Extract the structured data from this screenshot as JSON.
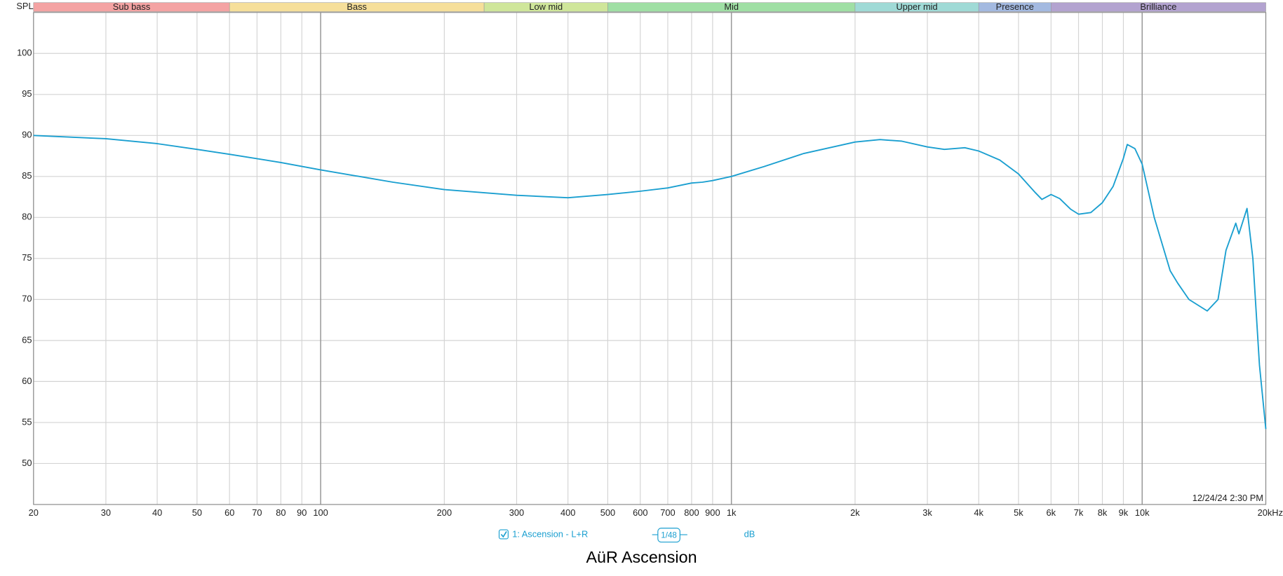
{
  "chart_data": {
    "type": "line",
    "title": "AüR Ascension",
    "y_label": "SPL",
    "timestamp": "12/24/24 2:30 PM",
    "xscale": "log",
    "grid": true,
    "xlim": [
      20,
      20000
    ],
    "ylim": [
      45,
      105
    ],
    "xticks": [
      20,
      30,
      40,
      50,
      60,
      70,
      80,
      90,
      100,
      200,
      300,
      400,
      500,
      600,
      700,
      800,
      900,
      {
        "value": 1000,
        "label": "1k"
      },
      {
        "value": 2000,
        "label": "2k"
      },
      {
        "value": 3000,
        "label": "3k"
      },
      {
        "value": 4000,
        "label": "4k"
      },
      {
        "value": 5000,
        "label": "5k"
      },
      {
        "value": 6000,
        "label": "6k"
      },
      {
        "value": 7000,
        "label": "7k"
      },
      {
        "value": 8000,
        "label": "8k"
      },
      {
        "value": 9000,
        "label": "9k"
      },
      {
        "value": 10000,
        "label": "10k"
      },
      {
        "value": 20000,
        "label": "20kHz"
      }
    ],
    "yticks": [
      50,
      55,
      60,
      65,
      70,
      75,
      80,
      85,
      90,
      95,
      100
    ],
    "bands": [
      {
        "name": "Sub bass",
        "start": 20,
        "end": 60,
        "color": "#f4a3a3"
      },
      {
        "name": "Bass",
        "start": 60,
        "end": 250,
        "color": "#f6df9a"
      },
      {
        "name": "Low mid",
        "start": 250,
        "end": 500,
        "color": "#cfe69a"
      },
      {
        "name": "Mid",
        "start": 500,
        "end": 2000,
        "color": "#9fdfa4"
      },
      {
        "name": "Upper mid",
        "start": 2000,
        "end": 4000,
        "color": "#9fdad6"
      },
      {
        "name": "Presence",
        "start": 4000,
        "end": 6000,
        "color": "#a3b9e0"
      },
      {
        "name": "Brilliance",
        "start": 6000,
        "end": 20000,
        "color": "#b3a3d0"
      }
    ],
    "x": [
      20,
      30,
      40,
      50,
      60,
      80,
      100,
      150,
      200,
      300,
      400,
      500,
      600,
      700,
      800,
      850,
      900,
      1000,
      1200,
      1500,
      2000,
      2300,
      2600,
      3000,
      3300,
      3700,
      4000,
      4500,
      5000,
      5500,
      5700,
      6000,
      6300,
      6700,
      7000,
      7500,
      8000,
      8500,
      9000,
      9200,
      9600,
      10000,
      10700,
      11700,
      12200,
      13000,
      14400,
      15300,
      16000,
      16900,
      17200,
      18000,
      18600,
      19300,
      20000
    ],
    "series": [
      {
        "name": "1: Ascension - L+R",
        "color": "#1a9fd0",
        "values": [
          90.0,
          89.6,
          89.0,
          88.3,
          87.7,
          86.7,
          85.8,
          84.3,
          83.4,
          82.7,
          82.4,
          82.8,
          83.2,
          83.6,
          84.2,
          84.3,
          84.5,
          85.0,
          86.2,
          87.8,
          89.2,
          89.5,
          89.3,
          88.6,
          88.3,
          88.5,
          88.1,
          87.0,
          85.3,
          83.0,
          82.2,
          82.8,
          82.3,
          81.0,
          80.4,
          80.6,
          81.8,
          83.8,
          87.2,
          88.9,
          88.4,
          86.5,
          80.0,
          73.5,
          72.0,
          70.0,
          68.6,
          70.0,
          76.0,
          79.3,
          78.0,
          81.1,
          75.0,
          62.0,
          54.2
        ]
      }
    ],
    "smoothing": "1/48",
    "units": "dB"
  }
}
